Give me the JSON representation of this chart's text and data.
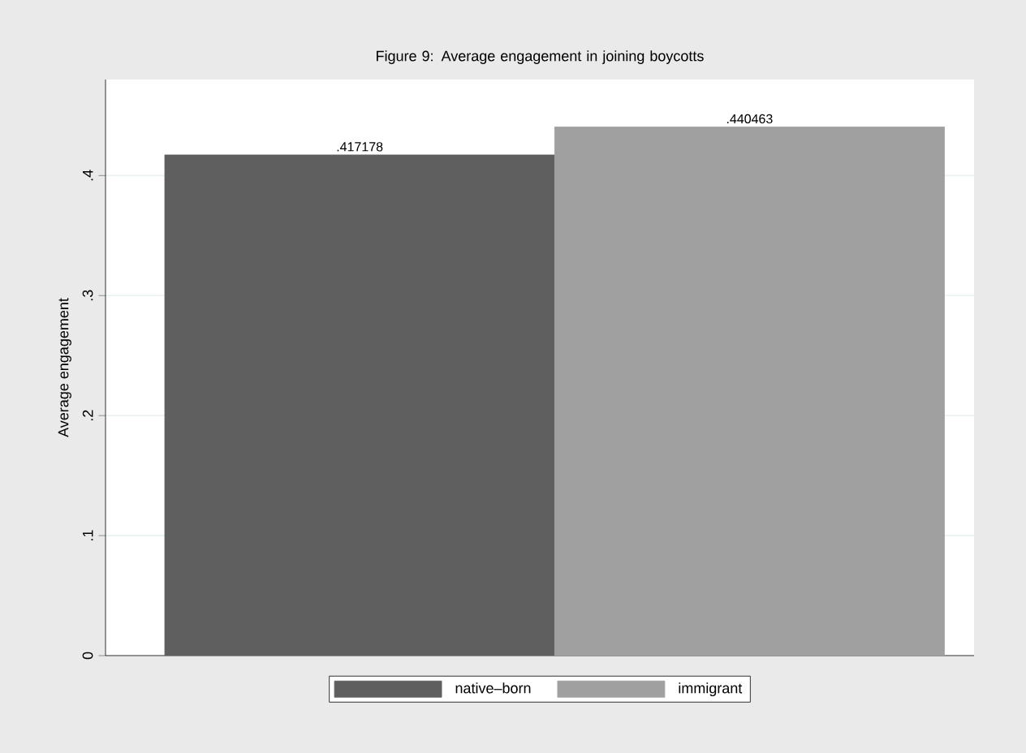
{
  "chart_data": {
    "type": "bar",
    "title": "Figure 9: Average engagement in joining boycotts",
    "ylabel": "Average engagement",
    "categories": [
      null
    ],
    "series": [
      {
        "name": "native–born",
        "color": "#5f5f5f",
        "values": [
          0.417178
        ],
        "value_labels": [
          ".417178"
        ]
      },
      {
        "name": "immigrant",
        "color": "#a0a0a0",
        "values": [
          0.440463
        ],
        "value_labels": [
          ".440463"
        ]
      }
    ],
    "ylim": [
      0,
      0.48
    ],
    "yticks": [
      {
        "value": 0,
        "label": "0"
      },
      {
        "value": 0.1,
        "label": ".1"
      },
      {
        "value": 0.2,
        "label": ".2"
      },
      {
        "value": 0.3,
        "label": ".3"
      },
      {
        "value": 0.4,
        "label": ".4"
      }
    ],
    "grid": "y",
    "legend": "bottom"
  }
}
